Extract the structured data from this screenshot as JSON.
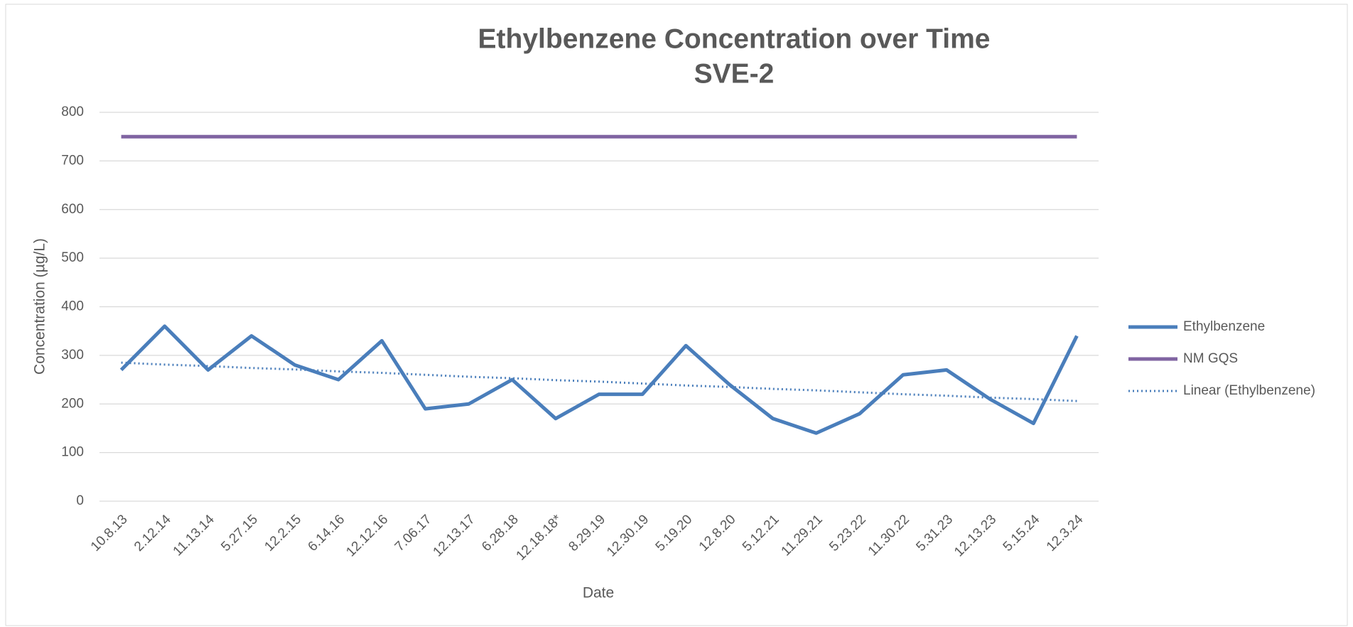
{
  "chart_data": {
    "type": "line",
    "title": "Ethylbenzene Concentration over Time",
    "subtitle": "SVE-2",
    "x_label": "Date",
    "y_label": "Concentration (µg/L)",
    "categories": [
      "10.8.13",
      "2.12.14",
      "11.13.14",
      "5.27.15",
      "12.2.15",
      "6.14.16",
      "12.12.16",
      "7.06.17",
      "12.13.17",
      "6.28.18",
      "12.18.18*",
      "8.29.19",
      "12.30.19",
      "5.19.20",
      "12.8.20",
      "5.12.21",
      "11.29.21",
      "5.23.22",
      "11.30.22",
      "5.31.23",
      "12.13.23",
      "5.15.24",
      "12.3.24"
    ],
    "series": [
      {
        "name": "Ethylbenzene",
        "color": "#4a7ebb",
        "style": "solid",
        "values": [
          270,
          360,
          270,
          340,
          280,
          250,
          330,
          190,
          200,
          250,
          170,
          220,
          220,
          320,
          240,
          170,
          140,
          180,
          260,
          270,
          210,
          160,
          340
        ]
      },
      {
        "name": "NM GQS",
        "color": "#8064a2",
        "style": "solid",
        "values": [
          750,
          750,
          750,
          750,
          750,
          750,
          750,
          750,
          750,
          750,
          750,
          750,
          750,
          750,
          750,
          750,
          750,
          750,
          750,
          750,
          750,
          750,
          750
        ]
      },
      {
        "name": "Linear (Ethylbenzene)",
        "color": "#4a7ebb",
        "style": "dotted",
        "values": [
          285,
          281,
          278,
          274,
          271,
          267,
          264,
          260,
          256,
          253,
          249,
          246,
          242,
          238,
          235,
          231,
          228,
          224,
          220,
          217,
          213,
          210,
          206
        ]
      }
    ],
    "ylim": [
      0,
      800
    ],
    "yticks": [
      0,
      100,
      200,
      300,
      400,
      500,
      600,
      700,
      800
    ],
    "grid": true,
    "legend": "right"
  }
}
